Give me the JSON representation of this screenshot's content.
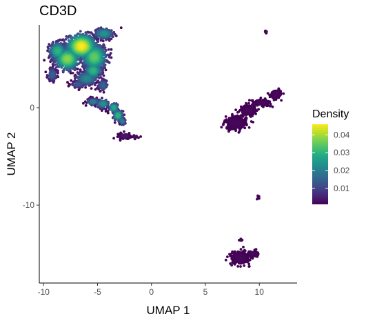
{
  "chart_data": {
    "type": "scatter",
    "title": "CD3D",
    "xlabel": "UMAP 1",
    "ylabel": "UMAP 2",
    "xlim": [
      -10.4,
      13.5
    ],
    "ylim": [
      -18.0,
      8.5
    ],
    "xticks": [
      -10,
      -5,
      0,
      5,
      10
    ],
    "xtick_labels": [
      "-10",
      "-5",
      "0",
      "5",
      "10"
    ],
    "yticks": [
      -10,
      0
    ],
    "ytick_labels": [
      "-10",
      "0"
    ],
    "grid": false,
    "legend": {
      "title": "Density",
      "placement": "right",
      "scale": "viridis",
      "min": 0.001,
      "max": 0.046,
      "ticks": [
        0.01,
        0.02,
        0.03,
        0.04
      ],
      "tick_labels": [
        "0.01",
        "0.02",
        "0.03",
        "0.04"
      ]
    },
    "clusters": [
      {
        "x": -6.5,
        "y": 6.3,
        "sx": 1.2,
        "sy": 1.1,
        "density": 0.046
      },
      {
        "x": -7.8,
        "y": 5.0,
        "sx": 1.0,
        "sy": 1.0,
        "density": 0.038
      },
      {
        "x": -8.7,
        "y": 5.8,
        "sx": 0.7,
        "sy": 0.8,
        "density": 0.03
      },
      {
        "x": -5.3,
        "y": 5.2,
        "sx": 1.0,
        "sy": 1.2,
        "density": 0.035
      },
      {
        "x": -4.4,
        "y": 7.6,
        "sx": 0.8,
        "sy": 0.5,
        "density": 0.024
      },
      {
        "x": -5.4,
        "y": 3.8,
        "sx": 0.7,
        "sy": 0.7,
        "density": 0.03
      },
      {
        "x": -9.2,
        "y": 3.4,
        "sx": 0.4,
        "sy": 0.6,
        "density": 0.015
      },
      {
        "x": -6.0,
        "y": 3.0,
        "sx": 0.9,
        "sy": 0.6,
        "density": 0.022
      },
      {
        "x": -4.5,
        "y": 2.3,
        "sx": 0.4,
        "sy": 0.5,
        "density": 0.016
      },
      {
        "x": -6.8,
        "y": 2.4,
        "sx": 0.6,
        "sy": 0.3,
        "density": 0.014
      },
      {
        "x": -5.4,
        "y": 0.6,
        "sx": 0.5,
        "sy": 0.3,
        "density": 0.02
      },
      {
        "x": -4.5,
        "y": 0.4,
        "sx": 0.5,
        "sy": 0.4,
        "density": 0.024
      },
      {
        "x": -3.5,
        "y": 0.0,
        "sx": 0.4,
        "sy": 0.4,
        "density": 0.028
      },
      {
        "x": -3.1,
        "y": -0.8,
        "sx": 0.4,
        "sy": 0.5,
        "density": 0.03
      },
      {
        "x": -2.7,
        "y": -1.4,
        "sx": 0.25,
        "sy": 0.35,
        "density": 0.02
      },
      {
        "x": -2.5,
        "y": -2.9,
        "sx": 0.5,
        "sy": 0.3,
        "density": 0.004
      },
      {
        "x": -1.5,
        "y": -3.0,
        "sx": 0.3,
        "sy": 0.15,
        "density": 0.003
      },
      {
        "x": 7.8,
        "y": -1.6,
        "sx": 0.9,
        "sy": 0.6,
        "density": 0.002
      },
      {
        "x": 9.0,
        "y": -0.3,
        "sx": 0.7,
        "sy": 0.5,
        "density": 0.002
      },
      {
        "x": 10.2,
        "y": 0.5,
        "sx": 0.8,
        "sy": 0.3,
        "density": 0.002
      },
      {
        "x": 11.6,
        "y": 1.4,
        "sx": 0.5,
        "sy": 0.4,
        "density": 0.002
      },
      {
        "x": 10.6,
        "y": 7.8,
        "sx": 0.12,
        "sy": 0.1,
        "density": 0.002
      },
      {
        "x": 9.9,
        "y": -9.2,
        "sx": 0.1,
        "sy": 0.2,
        "density": 0.002
      },
      {
        "x": 8.2,
        "y": -15.4,
        "sx": 0.8,
        "sy": 0.6,
        "density": 0.002
      },
      {
        "x": 9.4,
        "y": -15.0,
        "sx": 0.4,
        "sy": 0.3,
        "density": 0.002
      },
      {
        "x": 8.3,
        "y": -13.6,
        "sx": 0.1,
        "sy": 0.1,
        "density": 0.002
      }
    ]
  }
}
